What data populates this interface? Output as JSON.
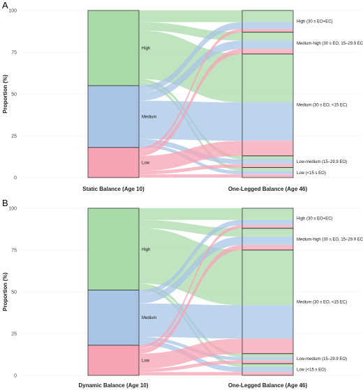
{
  "chart_data": [
    {
      "panel": "A",
      "type": "alluvial",
      "ylabel": "Proportion (%)",
      "ylim": [
        0,
        100
      ],
      "yticks": [
        "0",
        "25",
        "50",
        "75",
        "100"
      ],
      "axes": [
        "Static Balance (Age 10)",
        "One-Legged Balance (Age 46)"
      ],
      "left_strata": [
        {
          "name": "High",
          "value": 45,
          "color": "#a9dba9"
        },
        {
          "name": "Medium",
          "value": 37,
          "color": "#a8c4e5"
        },
        {
          "name": "Low",
          "value": 18,
          "color": "#f7a3b4"
        }
      ],
      "right_strata": [
        {
          "name": "High (30 s EO+EC)",
          "value": 13
        },
        {
          "name": "Medium-high (30 s EO, 15–29.9 EC)",
          "value": 13
        },
        {
          "name": "Medium (30 s EO, <15 EC)",
          "value": 61
        },
        {
          "name": "Low-medium (15–29.9 EO)",
          "value": 7
        },
        {
          "name": "Low (<15 s EO)",
          "value": 6
        }
      ],
      "flows": [
        [
          7,
          5,
          29,
          2,
          2
        ],
        [
          4,
          5,
          23,
          3,
          2
        ],
        [
          2,
          3,
          9,
          2,
          2
        ]
      ]
    },
    {
      "panel": "B",
      "type": "alluvial",
      "ylabel": "Proportion (%)",
      "ylim": [
        0,
        100
      ],
      "yticks": [
        "0",
        "25",
        "50",
        "75",
        "100"
      ],
      "axes": [
        "Dynamic Balance (Age 10)",
        "One-Legged Balance (Age 46)"
      ],
      "left_strata": [
        {
          "name": "High",
          "value": 49,
          "color": "#a9dba9"
        },
        {
          "name": "Medium",
          "value": 33,
          "color": "#a8c4e5"
        },
        {
          "name": "Low",
          "value": 18,
          "color": "#f7a3b4"
        }
      ],
      "right_strata": [
        {
          "name": "High (30 s EO+EC)",
          "value": 12
        },
        {
          "name": "Medium-high (30 s EO, 15–29.9 EC)",
          "value": 13
        },
        {
          "name": "Medium (30 s EO, <15 EC)",
          "value": 62
        },
        {
          "name": "Low-medium (15–29.9 EO)",
          "value": 6
        },
        {
          "name": "Low (<15 s EO)",
          "value": 7
        }
      ],
      "flows": [
        [
          7,
          5,
          33,
          2,
          2
        ],
        [
          3,
          5,
          20,
          2,
          3
        ],
        [
          2,
          3,
          9,
          2,
          2
        ]
      ]
    }
  ]
}
